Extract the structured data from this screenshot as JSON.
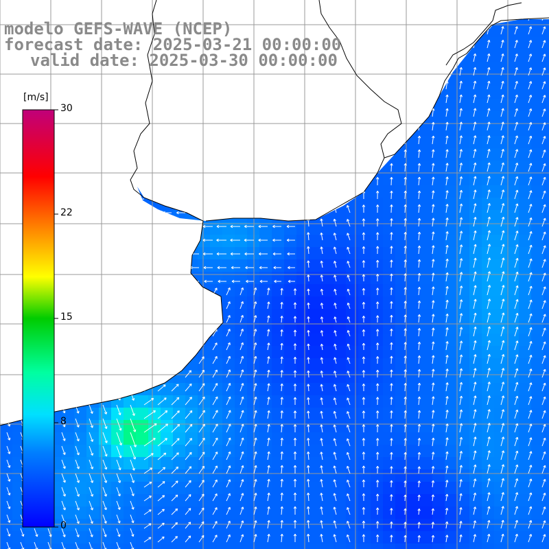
{
  "title": {
    "line1": "modelo GEFS-WAVE (NCEP)",
    "line2": "forecast date: 2025-03-21 00:00:00",
    "line3": "valid date: 2025-03-30 00:00:00"
  },
  "colorbar": {
    "unit": "[m/s]",
    "ticks": [
      "30",
      "22",
      "15",
      "8",
      "0"
    ]
  },
  "colors": {
    "title_text": "#8a8a8a",
    "land": "#ffffff",
    "grid": "#999999",
    "coast": "#000000",
    "arrow": "#ffffff"
  },
  "legend_placement": "left"
}
